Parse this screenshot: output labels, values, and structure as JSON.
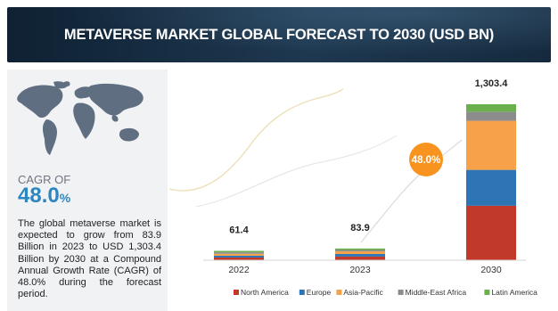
{
  "title": "METAVERSE MARKET GLOBAL FORECAST TO 2030 (USD BN)",
  "cagr": {
    "label": "CAGR OF",
    "value": "48.0",
    "unit": "%"
  },
  "description": "The global metaverse market is expected to grow from 83.9 Billion in 2023 to USD 1,303.4 Billion by 2030 at a Compound Annual Growth Rate (CAGR) of 48.0% during the forecast period.",
  "chart_data": {
    "type": "bar",
    "stacked": true,
    "categories": [
      "2022",
      "2023",
      "2030"
    ],
    "totals": [
      61.4,
      83.9,
      1303.4
    ],
    "total_labels": [
      "61.4",
      "83.9",
      "1,303.4"
    ],
    "series": [
      {
        "name": "North America",
        "color": "#c0392b",
        "values": [
          22.5,
          30.5,
          455
        ]
      },
      {
        "name": "Europe",
        "color": "#2e75b6",
        "values": [
          15.5,
          21.5,
          300
        ]
      },
      {
        "name": "Asia-Pacific",
        "color": "#f7a149",
        "values": [
          16.0,
          22.0,
          410
        ]
      },
      {
        "name": "Middle-East Africa",
        "color": "#8c8c8c",
        "values": [
          4.0,
          5.5,
          76
        ]
      },
      {
        "name": "Latin America",
        "color": "#6ab04c",
        "values": [
          3.4,
          4.4,
          62.4
        ]
      }
    ],
    "ylim": [
      0,
      1303.4
    ],
    "annotation": "48.0%",
    "annotation_color": "#f7931e",
    "legend_position": "bottom",
    "grid": false
  }
}
